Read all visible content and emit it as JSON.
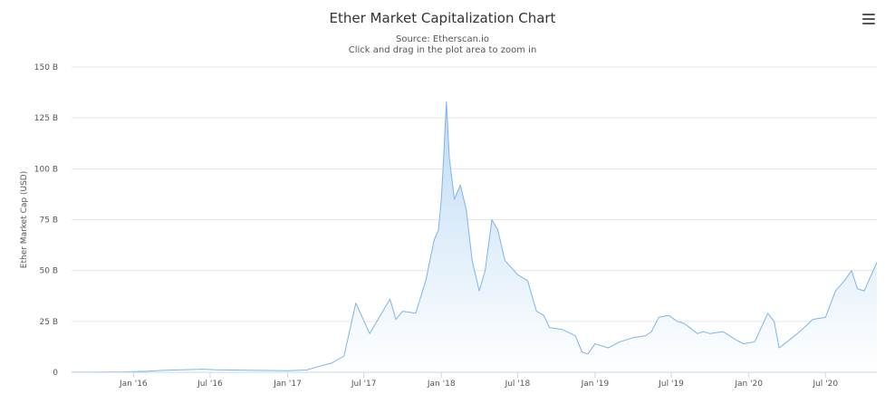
{
  "title": "Ether Market Capitalization Chart",
  "subtitle_source": "Source: Etherscan.io",
  "subtitle_hint": "Click and drag in the plot area to zoom in",
  "menu_icon": "hamburger-menu-icon",
  "colors": {
    "line": "#7cb5ec",
    "fill_top": "#b9d8f4",
    "fill_bottom": "#ffffff",
    "grid": "#e6e6e6"
  },
  "chart_data": {
    "type": "area",
    "title": "Ether Market Capitalization Chart",
    "ylabel": "Ether Market Cap (USD)",
    "xlabel": "",
    "ylim": [
      0,
      150
    ],
    "yunit": "B",
    "yticks": [
      "0",
      "25 B",
      "50 B",
      "75 B",
      "100 B",
      "125 B",
      "150 B"
    ],
    "ytick_values": [
      0,
      25,
      50,
      75,
      100,
      125,
      150
    ],
    "xticks": [
      "Jan '16",
      "Jul '16",
      "Jan '17",
      "Jul '17",
      "Jan '18",
      "Jul '18",
      "Jan '19",
      "Jul '19",
      "Jan '20",
      "Jul '20"
    ],
    "xtick_dates": [
      "2016-01-01",
      "2016-07-01",
      "2017-01-01",
      "2017-07-01",
      "2018-01-01",
      "2018-07-01",
      "2019-01-01",
      "2019-07-01",
      "2020-01-01",
      "2020-07-01"
    ],
    "x_start": "2015-08-07",
    "x_end": "2020-10-31",
    "grid": true,
    "legend": "none",
    "series": [
      {
        "x": [
          "2015-08-07",
          "2015-10-01",
          "2015-12-01",
          "2016-02-01",
          "2016-03-15",
          "2016-06-15",
          "2016-07-15",
          "2016-10-01",
          "2017-01-01",
          "2017-02-15",
          "2017-03-15",
          "2017-04-15",
          "2017-05-15",
          "2017-06-12",
          "2017-06-25",
          "2017-07-15",
          "2017-08-15",
          "2017-09-01",
          "2017-09-15",
          "2017-10-01",
          "2017-11-01",
          "2017-11-25",
          "2017-12-15",
          "2017-12-25",
          "2018-01-01",
          "2018-01-05",
          "2018-01-13",
          "2018-01-20",
          "2018-02-01",
          "2018-02-15",
          "2018-03-01",
          "2018-03-15",
          "2018-04-01",
          "2018-04-15",
          "2018-05-01",
          "2018-05-15",
          "2018-06-01",
          "2018-07-01",
          "2018-07-25",
          "2018-08-15",
          "2018-09-01",
          "2018-09-15",
          "2018-10-15",
          "2018-11-15",
          "2018-12-01",
          "2018-12-15",
          "2019-01-01",
          "2019-02-01",
          "2019-03-01",
          "2019-04-01",
          "2019-05-01",
          "2019-05-15",
          "2019-06-01",
          "2019-06-25",
          "2019-07-15",
          "2019-08-01",
          "2019-09-01",
          "2019-09-15",
          "2019-10-01",
          "2019-11-01",
          "2019-12-01",
          "2019-12-20",
          "2020-01-15",
          "2020-02-15",
          "2020-03-01",
          "2020-03-13",
          "2020-04-01",
          "2020-05-01",
          "2020-06-01",
          "2020-07-01",
          "2020-07-25",
          "2020-08-15",
          "2020-09-01",
          "2020-09-15",
          "2020-10-01",
          "2020-10-31"
        ],
        "values": [
          0.1,
          0.1,
          0.2,
          0.5,
          1.0,
          1.5,
          1.2,
          1.0,
          0.8,
          1.1,
          2.8,
          4.5,
          8.0,
          34.0,
          28.0,
          19.0,
          30.0,
          36.0,
          26.0,
          30.0,
          29.0,
          45.0,
          65.0,
          70.0,
          85.0,
          100.0,
          133.0,
          105.0,
          85.0,
          92.0,
          80.0,
          55.0,
          40.0,
          50.0,
          75.0,
          70.0,
          55.0,
          48.0,
          45.0,
          30.0,
          28.0,
          22.0,
          21.0,
          18.0,
          10.0,
          9.0,
          14.0,
          12.0,
          15.0,
          17.0,
          18.0,
          20.0,
          27.0,
          28.0,
          25.0,
          24.0,
          19.0,
          20.0,
          19.0,
          20.0,
          16.0,
          14.0,
          15.0,
          29.0,
          25.0,
          12.0,
          15.0,
          20.0,
          26.0,
          27.0,
          40.0,
          45.0,
          50.0,
          41.0,
          40.0,
          54.0
        ]
      }
    ]
  }
}
